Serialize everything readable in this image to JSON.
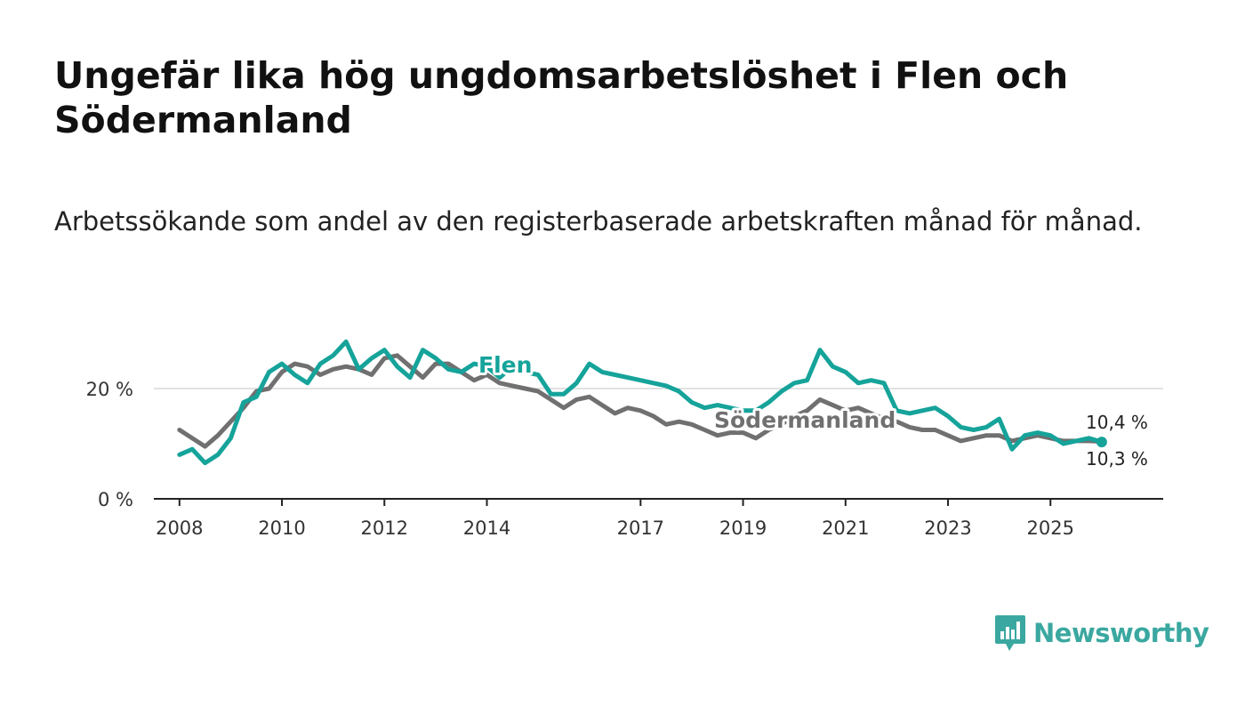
{
  "title": "Ungefär lika hög ungdomsarbetslöshet i Flen och Södermanland",
  "subtitle": "Arbetssökande som andel av den registerbaserade arbetskraften månad för månad.",
  "brand": {
    "name": "Newsworthy",
    "color": "#3aa8a0"
  },
  "chart_data": {
    "type": "line",
    "title": "Ungefär lika hög ungdomsarbetslöshet i Flen och Södermanland",
    "xlabel": "",
    "ylabel": "",
    "xlim": [
      2007.5,
      2027.2
    ],
    "ylim": [
      0,
      30
    ],
    "y_ticks": [
      0,
      20
    ],
    "y_tick_labels": [
      "0 %",
      "20 %"
    ],
    "x_ticks": [
      2008,
      2010,
      2012,
      2014,
      2017,
      2019,
      2021,
      2023,
      2025
    ],
    "x_tick_labels": [
      "2008",
      "2010",
      "2012",
      "2014",
      "2017",
      "2019",
      "2021",
      "2023",
      "2025"
    ],
    "grid": true,
    "series": [
      {
        "name": "Södermanland",
        "color": "#707070",
        "label": "Södermanland",
        "end_label": "10,4 %",
        "x": [
          2008.0,
          2008.25,
          2008.5,
          2008.75,
          2009.0,
          2009.25,
          2009.5,
          2009.75,
          2010.0,
          2010.25,
          2010.5,
          2010.75,
          2011.0,
          2011.25,
          2011.5,
          2011.75,
          2012.0,
          2012.25,
          2012.5,
          2012.75,
          2013.0,
          2013.25,
          2013.5,
          2013.75,
          2014.0,
          2014.25,
          2014.5,
          2014.75,
          2015.0,
          2015.25,
          2015.5,
          2015.75,
          2016.0,
          2016.25,
          2016.5,
          2016.75,
          2017.0,
          2017.25,
          2017.5,
          2017.75,
          2018.0,
          2018.25,
          2018.5,
          2018.75,
          2019.0,
          2019.25,
          2019.5,
          2019.75,
          2020.0,
          2020.25,
          2020.5,
          2020.75,
          2021.0,
          2021.25,
          2021.5,
          2021.75,
          2022.0,
          2022.25,
          2022.5,
          2022.75,
          2023.0,
          2023.25,
          2023.5,
          2023.75,
          2024.0,
          2024.25,
          2024.5,
          2024.75,
          2025.0,
          2025.25,
          2025.5,
          2025.75,
          2026.0
        ],
        "values": [
          12.5,
          11.0,
          9.5,
          11.5,
          14.0,
          16.5,
          19.5,
          20.0,
          23.0,
          24.5,
          24.0,
          22.5,
          23.5,
          24.0,
          23.5,
          22.5,
          25.5,
          26.0,
          24.0,
          22.0,
          24.5,
          24.5,
          23.0,
          21.5,
          22.5,
          21.0,
          20.5,
          20.0,
          19.5,
          18.0,
          16.5,
          18.0,
          18.5,
          17.0,
          15.5,
          16.5,
          16.0,
          15.0,
          13.5,
          14.0,
          13.5,
          12.5,
          11.5,
          12.0,
          12.0,
          11.0,
          12.5,
          13.5,
          15.0,
          16.0,
          18.0,
          17.0,
          16.0,
          16.5,
          15.5,
          14.5,
          14.0,
          13.0,
          12.5,
          12.5,
          11.5,
          10.5,
          11.0,
          11.5,
          11.5,
          10.5,
          11.0,
          11.5,
          11.0,
          10.5,
          10.5,
          10.5,
          10.4
        ]
      },
      {
        "name": "Flen",
        "color": "#15a39a",
        "label": "Flen",
        "end_label": "10,3 %",
        "x": [
          2008.0,
          2008.25,
          2008.5,
          2008.75,
          2009.0,
          2009.25,
          2009.5,
          2009.75,
          2010.0,
          2010.25,
          2010.5,
          2010.75,
          2011.0,
          2011.25,
          2011.5,
          2011.75,
          2012.0,
          2012.25,
          2012.5,
          2012.75,
          2013.0,
          2013.25,
          2013.5,
          2013.75,
          2014.0,
          2014.25,
          2014.5,
          2014.75,
          2015.0,
          2015.25,
          2015.5,
          2015.75,
          2016.0,
          2016.25,
          2016.5,
          2016.75,
          2017.0,
          2017.25,
          2017.5,
          2017.75,
          2018.0,
          2018.25,
          2018.5,
          2018.75,
          2019.0,
          2019.25,
          2019.5,
          2019.75,
          2020.0,
          2020.25,
          2020.5,
          2020.75,
          2021.0,
          2021.25,
          2021.5,
          2021.75,
          2022.0,
          2022.25,
          2022.5,
          2022.75,
          2023.0,
          2023.25,
          2023.5,
          2023.75,
          2024.0,
          2024.25,
          2024.5,
          2024.75,
          2025.0,
          2025.25,
          2025.5,
          2025.75,
          2026.0
        ],
        "values": [
          8.0,
          9.0,
          6.5,
          8.0,
          11.0,
          17.5,
          18.5,
          23.0,
          24.5,
          22.5,
          21.0,
          24.5,
          26.0,
          28.5,
          23.5,
          25.5,
          27.0,
          24.0,
          22.0,
          27.0,
          25.5,
          23.5,
          23.0,
          24.5,
          24.0,
          22.0,
          24.0,
          23.0,
          22.5,
          19.0,
          19.0,
          21.0,
          24.5,
          23.0,
          22.5,
          22.0,
          21.5,
          21.0,
          20.5,
          19.5,
          17.5,
          16.5,
          17.0,
          16.5,
          16.0,
          16.0,
          17.5,
          19.5,
          21.0,
          21.5,
          27.0,
          24.0,
          23.0,
          21.0,
          21.5,
          21.0,
          16.0,
          15.5,
          16.0,
          16.5,
          15.0,
          13.0,
          12.5,
          13.0,
          14.5,
          9.0,
          11.5,
          12.0,
          11.5,
          10.0,
          10.5,
          11.0,
          10.3
        ]
      }
    ]
  }
}
